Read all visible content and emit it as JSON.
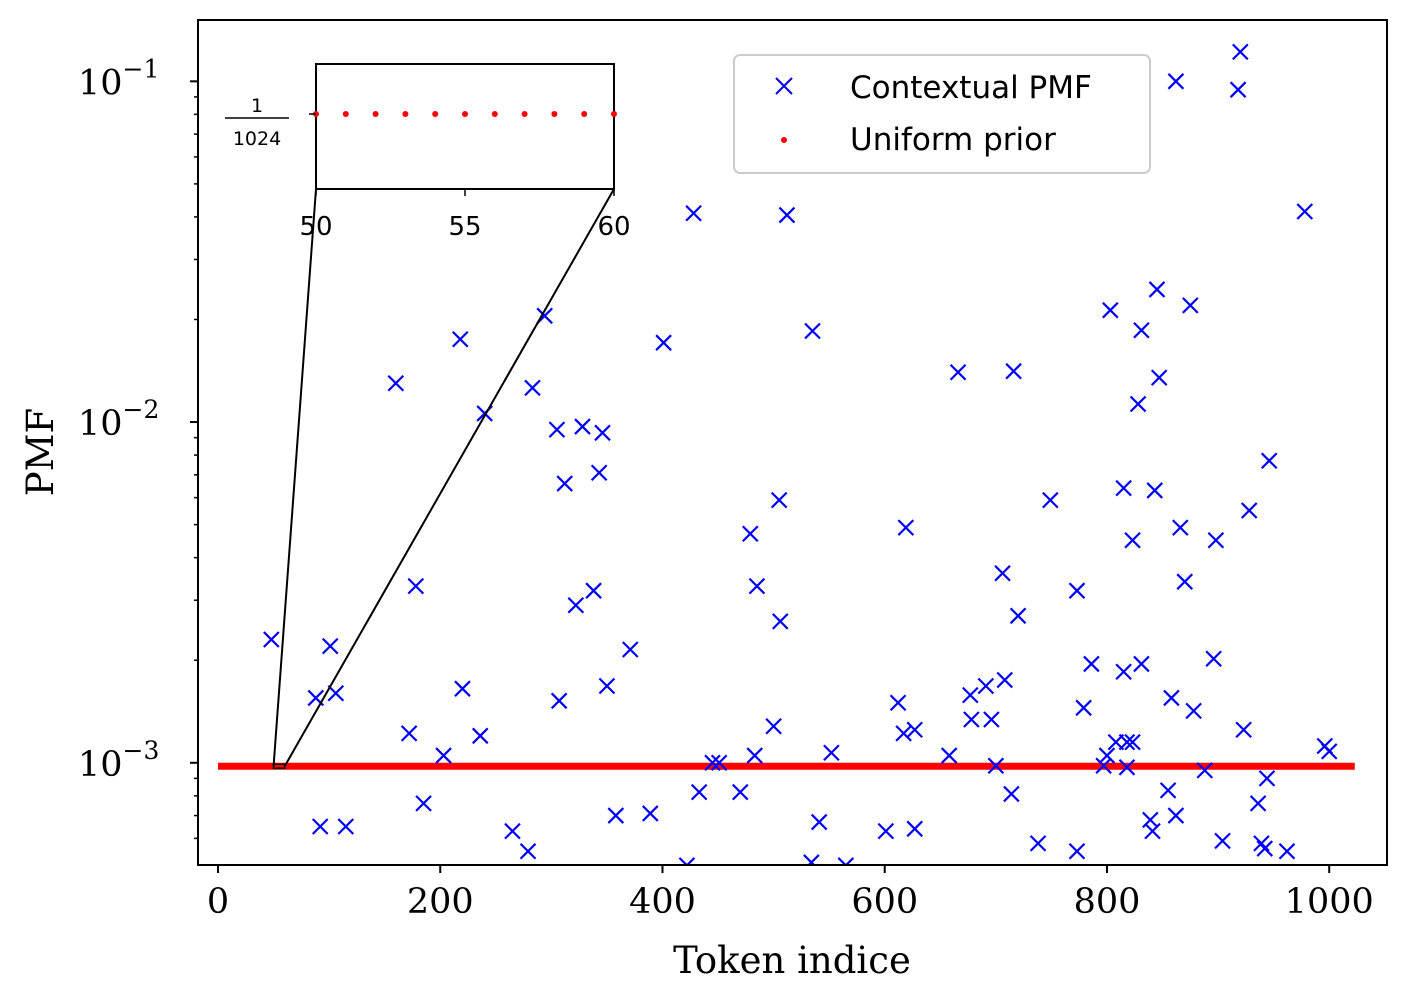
{
  "chart_data": {
    "type": "scatter",
    "xlabel": "Token indice",
    "ylabel": "PMF",
    "xlim": [
      -18,
      1052
    ],
    "ylim_log10": [
      -3.3,
      -0.82
    ],
    "x_ticks": [
      {
        "value": 0,
        "label": "0"
      },
      {
        "value": 200,
        "label": "200"
      },
      {
        "value": 400,
        "label": "400"
      },
      {
        "value": 600,
        "label": "600"
      },
      {
        "value": 800,
        "label": "800"
      },
      {
        "value": 1000,
        "label": "1000"
      }
    ],
    "y_ticks": [
      {
        "exp": -3,
        "base": "10",
        "sup": "−3"
      },
      {
        "exp": -2,
        "base": "10",
        "sup": "−2"
      },
      {
        "exp": -1,
        "base": "10",
        "sup": "−1"
      }
    ],
    "legend": {
      "position": "upper-center-right",
      "entries": [
        {
          "label": "Contextual PMF",
          "marker": "x",
          "color": "#0000ff"
        },
        {
          "label": "Uniform prior",
          "marker": "dot",
          "color": "#ff0000"
        }
      ]
    },
    "series": [
      {
        "name": "Contextual PMF",
        "marker": "x",
        "color": "#0000ff",
        "points": [
          [
            48,
            0.0023
          ],
          [
            88,
            0.00155
          ],
          [
            92,
            0.00065
          ],
          [
            101,
            0.0022
          ],
          [
            106,
            0.0016
          ],
          [
            115,
            0.00065
          ],
          [
            160,
            0.013
          ],
          [
            172,
            0.00122
          ],
          [
            178,
            0.0033
          ],
          [
            185,
            0.00076
          ],
          [
            203,
            0.00105
          ],
          [
            218,
            0.0175
          ],
          [
            220,
            0.00165
          ],
          [
            236,
            0.0012
          ],
          [
            240,
            0.0106
          ],
          [
            265,
            0.00063
          ],
          [
            279,
            0.00055
          ],
          [
            283,
            0.0126
          ],
          [
            294,
            0.0205
          ],
          [
            305,
            0.0095
          ],
          [
            307,
            0.00152
          ],
          [
            312,
            0.0066
          ],
          [
            322,
            0.0029
          ],
          [
            328,
            0.0097
          ],
          [
            338,
            0.0032
          ],
          [
            343,
            0.0071
          ],
          [
            346,
            0.0093
          ],
          [
            350,
            0.00168
          ],
          [
            358,
            0.0007
          ],
          [
            371,
            0.00215
          ],
          [
            389,
            0.00071
          ],
          [
            401,
            0.0171
          ],
          [
            422,
            0.0005
          ],
          [
            428,
            0.041
          ],
          [
            433,
            0.00082
          ],
          [
            445,
            0.001
          ],
          [
            451,
            0.001
          ],
          [
            470,
            0.00082
          ],
          [
            479,
            0.0047
          ],
          [
            483,
            0.00105
          ],
          [
            485,
            0.0033
          ],
          [
            500,
            0.00128
          ],
          [
            505,
            0.0059
          ],
          [
            506,
            0.0026
          ],
          [
            512,
            0.0405
          ],
          [
            534,
            0.00051
          ],
          [
            535,
            0.0185
          ],
          [
            541,
            0.00067
          ],
          [
            552,
            0.00107
          ],
          [
            565,
            0.0005
          ],
          [
            601,
            0.00063
          ],
          [
            612,
            0.0015
          ],
          [
            617,
            0.00122
          ],
          [
            619,
            0.0049
          ],
          [
            627,
            0.00125
          ],
          [
            627,
            0.00064
          ],
          [
            658,
            0.00105
          ],
          [
            666,
            0.014
          ],
          [
            677,
            0.00158
          ],
          [
            678,
            0.00134
          ],
          [
            691,
            0.00168
          ],
          [
            696,
            0.00134
          ],
          [
            700,
            0.00098
          ],
          [
            706,
            0.0036
          ],
          [
            708,
            0.00175
          ],
          [
            714,
            0.00081
          ],
          [
            716,
            0.0141
          ],
          [
            720,
            0.0027
          ],
          [
            738,
            0.00058
          ],
          [
            749,
            0.0059
          ],
          [
            773,
            0.0032
          ],
          [
            773,
            0.00055
          ],
          [
            779,
            0.00145
          ],
          [
            786,
            0.00195
          ],
          [
            797,
            0.00098
          ],
          [
            800,
            0.00105
          ],
          [
            803,
            0.0213
          ],
          [
            808,
            0.00115
          ],
          [
            815,
            0.00185
          ],
          [
            815,
            0.0064
          ],
          [
            818,
            0.00115
          ],
          [
            818,
            0.00097
          ],
          [
            823,
            0.00115
          ],
          [
            823,
            0.0045
          ],
          [
            828,
            0.0113
          ],
          [
            831,
            0.00195
          ],
          [
            831,
            0.0186
          ],
          [
            839,
            0.00068
          ],
          [
            841,
            0.00063
          ],
          [
            843,
            0.0063
          ],
          [
            845,
            0.0245
          ],
          [
            847,
            0.0135
          ],
          [
            855,
            0.00083
          ],
          [
            858,
            0.00155
          ],
          [
            862,
            0.1
          ],
          [
            862,
            0.0007
          ],
          [
            866,
            0.0049
          ],
          [
            870,
            0.0034
          ],
          [
            875,
            0.022
          ],
          [
            878,
            0.00142
          ],
          [
            888,
            0.00095
          ],
          [
            896,
            0.00202
          ],
          [
            898,
            0.0045
          ],
          [
            904,
            0.00059
          ],
          [
            918,
            0.0945
          ],
          [
            920,
            0.122
          ],
          [
            923,
            0.00125
          ],
          [
            928,
            0.0055
          ],
          [
            936,
            0.00076
          ],
          [
            939,
            0.00058
          ],
          [
            942,
            0.00056
          ],
          [
            944,
            0.0009
          ],
          [
            946,
            0.0077
          ],
          [
            962,
            0.00055
          ],
          [
            978,
            0.0415
          ],
          [
            996,
            0.00112
          ],
          [
            1000,
            0.00108
          ]
        ]
      },
      {
        "name": "Uniform prior",
        "marker": "dot",
        "color": "#ff0000",
        "constant_value": "1/1024",
        "x_range": [
          0,
          1023
        ]
      }
    ],
    "inset": {
      "xlim": [
        50,
        60
      ],
      "x_ticks": [
        {
          "value": 50,
          "label": "50"
        },
        {
          "value": 55,
          "label": "55"
        },
        {
          "value": 60,
          "label": "60"
        }
      ],
      "y_tick_numerator": "1",
      "y_tick_denominator": "1024",
      "dot_xs": [
        50,
        51,
        52,
        53,
        54,
        55,
        56,
        57,
        58,
        59,
        60
      ]
    }
  }
}
